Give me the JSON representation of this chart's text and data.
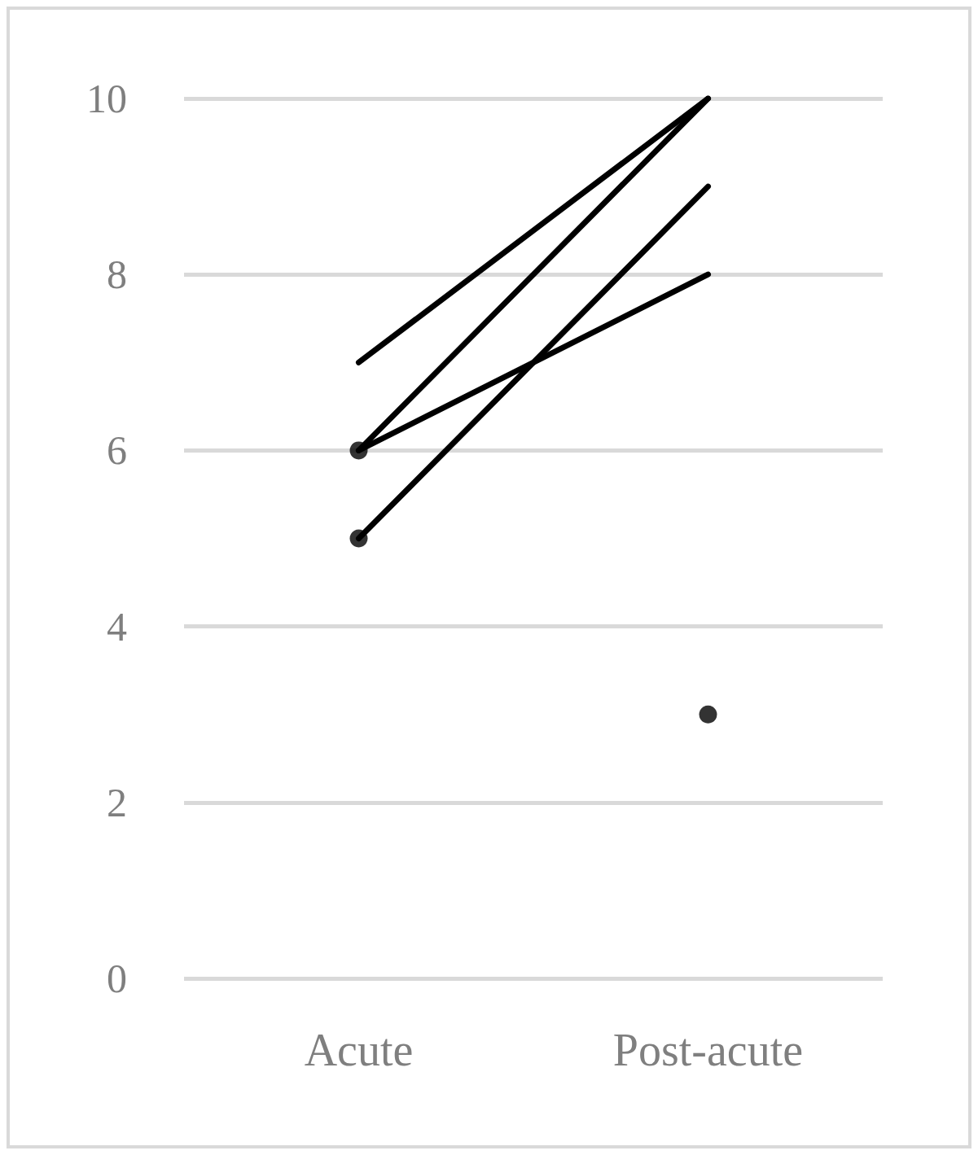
{
  "chart_data": {
    "type": "line",
    "categories": [
      "Acute",
      "Post-acute"
    ],
    "series": [
      {
        "color": "#000000",
        "marker": "none",
        "values": [
          7,
          10
        ]
      },
      {
        "color": "#000000",
        "marker": "none",
        "values": [
          6,
          10
        ]
      },
      {
        "color": "#000000",
        "marker": "none",
        "values": [
          6,
          8
        ]
      },
      {
        "color": "#000000",
        "marker": "none",
        "values": [
          5,
          9
        ]
      },
      {
        "type": "scatter",
        "color": "#000000",
        "marker": "circle",
        "values": [
          6,
          null
        ]
      },
      {
        "type": "scatter",
        "color": "#000000",
        "marker": "circle",
        "values": [
          5,
          null
        ]
      },
      {
        "type": "scatter",
        "color": "#000000",
        "marker": "circle",
        "values": [
          null,
          3
        ]
      }
    ],
    "ylim": [
      0,
      10
    ],
    "yticks": [
      0,
      2,
      4,
      6,
      8,
      10
    ],
    "grid": "y",
    "line_style": "solid"
  }
}
